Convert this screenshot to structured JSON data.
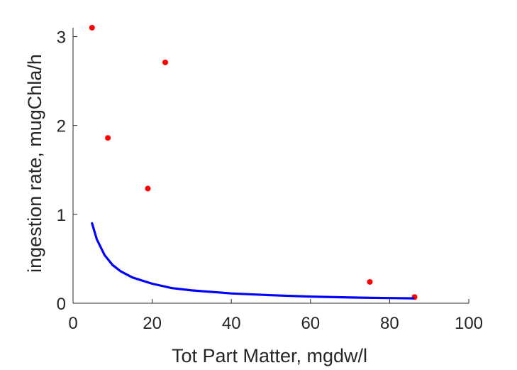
{
  "chart_data": {
    "type": "scatter",
    "xlabel": "Tot Part Matter, mgdw/l",
    "ylabel": "ingestion rate, mugChla/h",
    "xlim": [
      0,
      100
    ],
    "ylim": [
      0,
      3.1
    ],
    "xticks": [
      0,
      20,
      40,
      60,
      80,
      100
    ],
    "yticks": [
      0,
      1,
      2,
      3
    ],
    "xtick_labels": [
      "0",
      "20",
      "40",
      "60",
      "80",
      "100"
    ],
    "ytick_labels": [
      "0",
      "1",
      "2",
      "3"
    ],
    "grid": false,
    "legend": false,
    "box": "left-bottom axes only",
    "series": [
      {
        "kind": "points",
        "color": "#ff0000",
        "x": [
          4.8,
          8.8,
          18.9,
          23.3,
          75.0,
          86.3
        ],
        "y": [
          3.1,
          1.86,
          1.29,
          2.71,
          0.24,
          0.07
        ]
      },
      {
        "kind": "curve",
        "color": "#0000ff",
        "x": [
          4.8,
          6,
          8,
          10,
          12,
          15,
          20,
          25,
          30,
          40,
          50,
          60,
          70,
          80,
          86
        ],
        "y": [
          0.9,
          0.72,
          0.54,
          0.43,
          0.36,
          0.29,
          0.22,
          0.17,
          0.145,
          0.11,
          0.09,
          0.075,
          0.065,
          0.058,
          0.055
        ]
      }
    ]
  }
}
